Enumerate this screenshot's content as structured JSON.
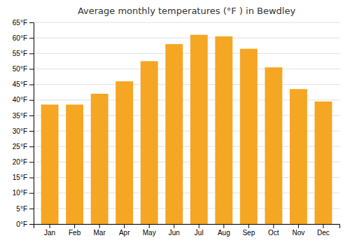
{
  "chart_data": {
    "type": "bar",
    "title": "Average monthly temperatures (°F ) in Bewdley",
    "categories": [
      "Jan",
      "Feb",
      "Mar",
      "Apr",
      "May",
      "Jun",
      "Jul",
      "Aug",
      "Sep",
      "Oct",
      "Nov",
      "Dec"
    ],
    "values": [
      38.5,
      38.5,
      42.0,
      46.0,
      52.5,
      58.0,
      61.0,
      60.5,
      56.5,
      50.5,
      43.5,
      39.5
    ],
    "color": "#F5A623",
    "ylim": [
      0,
      65
    ],
    "yticks": [
      {
        "value": 0,
        "label": "0°F"
      },
      {
        "value": 5,
        "label": "5°F"
      },
      {
        "value": 10,
        "label": "10°F"
      },
      {
        "value": 15,
        "label": "15°F"
      },
      {
        "value": 20,
        "label": "20°F"
      },
      {
        "value": 25,
        "label": "25°F"
      },
      {
        "value": 30,
        "label": "30°F"
      },
      {
        "value": 35,
        "label": "35°F"
      },
      {
        "value": 40,
        "label": "40°F"
      },
      {
        "value": 45,
        "label": "45°F"
      },
      {
        "value": 50,
        "label": "50°F"
      },
      {
        "value": 55,
        "label": "55°F"
      },
      {
        "value": 60,
        "label": "60°F"
      },
      {
        "value": 65,
        "label": "65°F"
      }
    ],
    "grid": true
  }
}
